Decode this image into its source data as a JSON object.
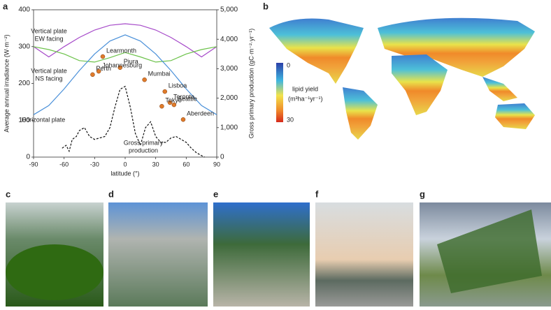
{
  "chart_data": {
    "type": "line",
    "panel": "a",
    "xlabel": "latitude (°)",
    "ylabel": "Average annual irradiance (W·m⁻²)",
    "y2label": "Gross primary production (gC·m⁻²·yr⁻¹)",
    "xlim": [
      -90,
      90
    ],
    "xticks": [
      -90,
      -60,
      -30,
      0,
      30,
      60,
      90
    ],
    "ylim": [
      0,
      400
    ],
    "yticks": [
      0,
      100,
      200,
      300,
      400
    ],
    "y2lim": [
      0,
      5000
    ],
    "y2ticks": [
      0,
      {
        "value": 1000,
        "label": "1,000"
      },
      {
        "value": 2000,
        "label": "2,000"
      },
      {
        "value": 3000,
        "label": "3,000"
      },
      {
        "value": 4000,
        "label": "4,000"
      },
      {
        "value": 5000,
        "label": "5,000"
      }
    ],
    "series": [
      {
        "name": [
          "Vertical plate",
          "EW facing"
        ],
        "color": "#a64ac9",
        "dash": false,
        "x": [
          -90,
          -75,
          -60,
          -45,
          -30,
          -15,
          0,
          15,
          30,
          45,
          60,
          75,
          90
        ],
        "values": [
          300,
          272,
          300,
          325,
          345,
          358,
          362,
          358,
          345,
          325,
          300,
          272,
          300
        ]
      },
      {
        "name": [
          "Vertical plate",
          "NS facing"
        ],
        "color": "#6cc24a",
        "dash": false,
        "x": [
          -90,
          -75,
          -60,
          -45,
          -30,
          -15,
          0,
          15,
          30,
          45,
          60,
          75,
          90
        ],
        "values": [
          300,
          292,
          280,
          262,
          258,
          270,
          284,
          272,
          258,
          262,
          280,
          292,
          300
        ]
      },
      {
        "name": [
          "Horizontal plate"
        ],
        "color": "#4a90d9",
        "dash": false,
        "x": [
          -90,
          -75,
          -60,
          -45,
          -30,
          -15,
          0,
          15,
          30,
          45,
          60,
          75,
          90
        ],
        "values": [
          115,
          140,
          185,
          235,
          280,
          315,
          332,
          315,
          280,
          235,
          185,
          140,
          115
        ]
      },
      {
        "name": [
          "Gross primary",
          "production"
        ],
        "color": "#111111",
        "dash": true,
        "axis": "y2",
        "x": [
          -62,
          -58,
          -55,
          -52,
          -48,
          -45,
          -40,
          -35,
          -30,
          -25,
          -20,
          -15,
          -10,
          -5,
          0,
          5,
          10,
          15,
          20,
          25,
          30,
          35,
          40,
          45,
          50,
          55,
          60,
          65,
          70,
          75,
          78
        ],
        "values": [
          300,
          400,
          200,
          600,
          700,
          900,
          1000,
          700,
          600,
          650,
          700,
          1000,
          1700,
          2300,
          2400,
          1700,
          800,
          400,
          1000,
          1200,
          700,
          500,
          500,
          650,
          700,
          600,
          500,
          300,
          150,
          50,
          0
        ]
      }
    ],
    "sites": {
      "color": "#e07b2a",
      "names": [
        "Learmonth",
        "Piura",
        "Johannesburg",
        "Perth",
        "Mumbai",
        "Lisboa",
        "Toronto",
        "Tokyo",
        "Seattle",
        "Aberdeen"
      ],
      "latitude": [
        -22,
        -5,
        -26,
        -32,
        19,
        39,
        44,
        36,
        48,
        57
      ],
      "irradiance": [
        273,
        243,
        233,
        224,
        210,
        178,
        148,
        138,
        142,
        102
      ]
    }
  },
  "map_panel": {
    "panel": "b",
    "colorbar_title": [
      "lipid yield",
      "(m³ha⁻¹yr⁻¹)"
    ],
    "colorbar_ticks": [
      "0",
      "30"
    ]
  },
  "photo_panels": [
    "c",
    "d",
    "e",
    "f",
    "g"
  ]
}
